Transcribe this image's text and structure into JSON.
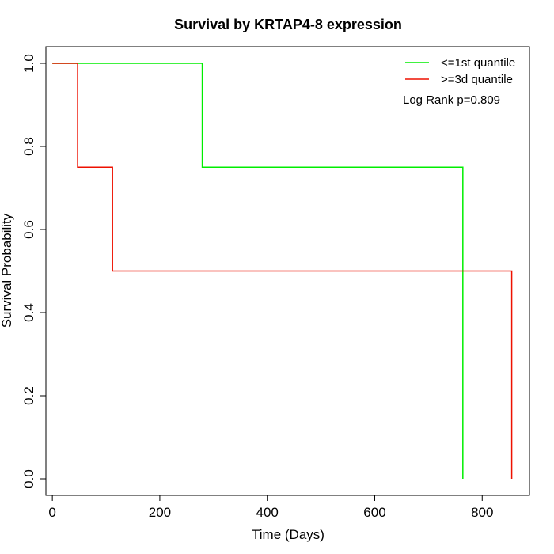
{
  "chart_data": {
    "type": "line",
    "title": "Survival by KRTAP4-8 expression",
    "xlabel": "Time (Days)",
    "ylabel": "Survival Probability",
    "xlim": [
      -12,
      888
    ],
    "ylim": [
      -0.04,
      1.04
    ],
    "xticks": [
      0,
      200,
      400,
      600,
      800
    ],
    "yticks": [
      0.0,
      0.2,
      0.4,
      0.6,
      0.8,
      1.0
    ],
    "ytick_labels": [
      "0.0",
      "0.2",
      "0.4",
      "0.6",
      "0.8",
      "1.0"
    ],
    "grid": false,
    "legend_position": "top-right",
    "annotation": "Log Rank p=0.809",
    "series": [
      {
        "name": "<=1st quantile",
        "color": "#00ee00",
        "step": true,
        "x": [
          0,
          279,
          764
        ],
        "y": [
          1.0,
          0.75,
          0.0
        ]
      },
      {
        "name": ">=3d quantile",
        "color": "#ee1100",
        "step": true,
        "x": [
          0,
          47,
          112,
          855
        ],
        "y": [
          1.0,
          0.75,
          0.5,
          0.0
        ]
      }
    ]
  }
}
